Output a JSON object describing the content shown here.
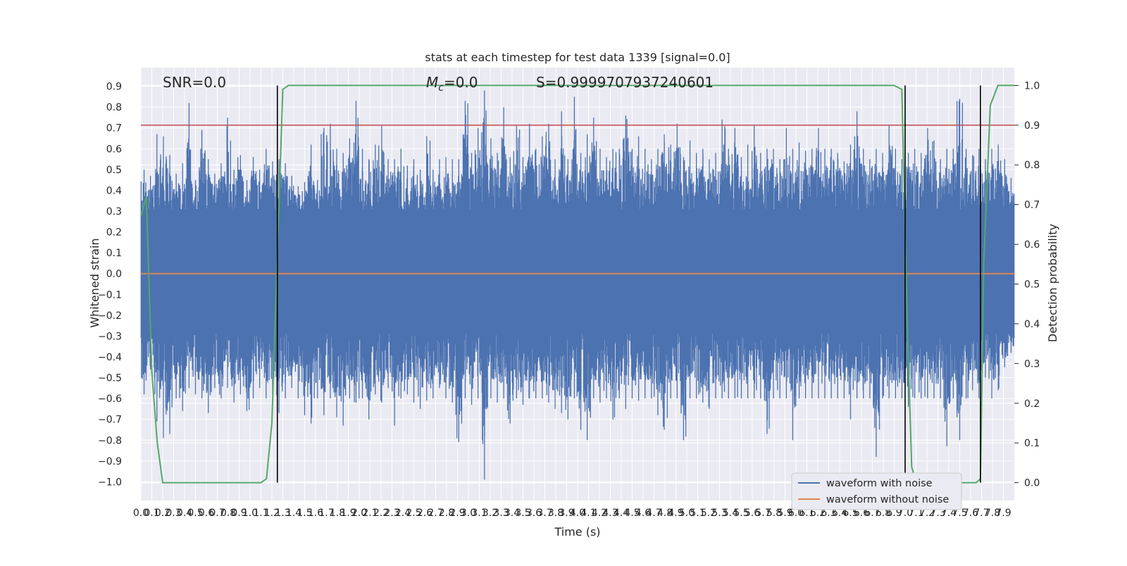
{
  "chart_data": {
    "type": "line",
    "title": "stats at each timestep for test data 1339 [signal=0.0]",
    "xlabel": "Time (s)",
    "ylabel": "Whitened strain",
    "y2label": "Detection probability",
    "xlim": [
      0.0,
      8.0
    ],
    "ylim": [
      -1.09,
      0.99
    ],
    "y2lim": [
      -0.045,
      1.045
    ],
    "x_tick_labels": [
      "0.0",
      "0.1",
      "0.2",
      "0.3",
      "0.4",
      "0.5",
      "0.6",
      "0.7",
      "0.8",
      "0.9",
      "1.0",
      "1.1",
      "1.2",
      "1.3",
      "1.4",
      "1.5",
      "1.6",
      "1.7",
      "1.8",
      "1.9",
      "2.0",
      "2.1",
      "2.2",
      "2.3",
      "2.4",
      "2.5",
      "2.6",
      "2.7",
      "2.8",
      "2.9",
      "3.0",
      "3.1",
      "3.2",
      "3.3",
      "3.4",
      "3.5",
      "3.6",
      "3.7",
      "3.8",
      "3.9",
      "4.0",
      "4.1",
      "4.2",
      "4.3",
      "4.4",
      "4.5",
      "4.6",
      "4.7",
      "4.8",
      "4.9",
      "5.0",
      "5.1",
      "5.2",
      "5.3",
      "5.4",
      "5.5",
      "5.6",
      "5.7",
      "5.8",
      "5.9",
      "6.0",
      "6.1",
      "6.2",
      "6.3",
      "6.4",
      "6.5",
      "6.6",
      "6.7",
      "6.8",
      "6.9",
      "7.0",
      "7.1",
      "7.2",
      "7.3",
      "7.4",
      "7.5",
      "7.6",
      "7.7",
      "7.8",
      "7.9"
    ],
    "y_tick_labels": [
      "0.9",
      "0.8",
      "0.7",
      "0.6",
      "0.5",
      "0.4",
      "0.3",
      "0.2",
      "0.1",
      "0.0",
      "−0.1",
      "−0.2",
      "−0.3",
      "−0.4",
      "−0.5",
      "−0.6",
      "−0.7",
      "−0.8",
      "−0.9",
      "−1.0"
    ],
    "y_ticks": [
      0.9,
      0.8,
      0.7,
      0.6,
      0.5,
      0.4,
      0.3,
      0.2,
      0.1,
      0.0,
      -0.1,
      -0.2,
      -0.3,
      -0.4,
      -0.5,
      -0.6,
      -0.7,
      -0.8,
      -0.9,
      -1.0
    ],
    "y2_tick_labels": [
      "1.0",
      "0.9",
      "0.8",
      "0.7",
      "0.6",
      "0.5",
      "0.4",
      "0.3",
      "0.2",
      "0.1",
      "0.0"
    ],
    "y2_ticks": [
      1.0,
      0.9,
      0.8,
      0.7,
      0.6,
      0.5,
      0.4,
      0.3,
      0.2,
      0.1,
      0.0
    ],
    "annotations": {
      "snr": "SNR=0.0",
      "mc_symbol": "M",
      "mc_sub": "c",
      "mc_value": "=0.0",
      "s": "S=0.9999707937240601"
    },
    "threshold": 0.9,
    "event_lines_x": [
      1.25,
      7.0,
      7.69
    ],
    "detection_probability": {
      "x": [
        0.0,
        0.05,
        0.1,
        0.15,
        0.2,
        0.25,
        0.3,
        0.4,
        0.6,
        0.8,
        1.0,
        1.1,
        1.15,
        1.2,
        1.25,
        1.3,
        1.35,
        1.4,
        1.6,
        2.0,
        3.0,
        4.0,
        5.0,
        6.0,
        6.9,
        6.97,
        7.02,
        7.06,
        7.1,
        7.2,
        7.4,
        7.6,
        7.65,
        7.69,
        7.72,
        7.78,
        7.85,
        7.95,
        8.0
      ],
      "y": [
        0.67,
        0.72,
        0.28,
        0.1,
        0.0,
        0.0,
        0.0,
        0.0,
        0.0,
        0.0,
        0.0,
        0.0,
        0.01,
        0.15,
        0.58,
        0.99,
        1.0,
        1.0,
        1.0,
        1.0,
        1.0,
        1.0,
        1.0,
        1.0,
        1.0,
        0.99,
        0.4,
        0.04,
        0.0,
        0.0,
        0.0,
        0.0,
        0.0,
        0.01,
        0.55,
        0.95,
        1.0,
        1.0,
        1.0
      ]
    },
    "series": [
      {
        "name": "waveform with noise",
        "color": "#4c72b0",
        "envelope_upper": [
          0.5,
          0.47,
          0.67,
          0.66,
          0.57,
          0.48,
          0.53,
          0.82,
          0.45,
          0.69,
          0.55,
          0.48,
          0.53,
          0.75,
          0.5,
          0.57,
          0.45,
          0.56,
          0.5,
          0.6,
          0.54,
          0.55,
          0.53,
          0.47,
          0.42,
          0.44,
          0.62,
          0.45,
          0.7,
          0.72,
          0.6,
          0.58,
          0.65,
          0.83,
          0.6,
          0.55,
          0.62,
          0.71,
          0.55,
          0.55,
          0.6,
          0.52,
          0.55,
          0.5,
          0.66,
          0.5,
          0.55,
          0.56,
          0.55,
          0.55,
          0.83,
          0.58,
          0.7,
          0.88,
          0.65,
          0.58,
          0.8,
          0.56,
          0.71,
          0.56,
          0.72,
          0.6,
          0.66,
          0.72,
          0.55,
          0.78,
          0.55,
          0.85,
          0.58,
          0.67,
          0.75,
          0.6,
          0.56,
          0.6,
          0.6,
          0.76,
          0.6,
          0.66,
          0.6,
          0.55,
          0.6,
          0.67,
          0.62,
          0.72,
          0.56,
          0.64,
          0.58,
          0.6,
          0.55,
          0.58,
          0.74,
          0.6,
          0.7,
          0.56,
          0.62,
          0.71,
          0.58,
          0.6,
          0.6,
          0.55,
          0.7,
          0.6,
          0.63,
          0.59,
          0.6,
          0.7,
          0.6,
          0.6,
          0.58,
          0.54,
          0.62,
          0.78,
          0.6,
          0.55,
          0.6,
          0.58,
          0.71,
          0.6,
          0.55,
          0.58,
          0.6,
          0.58,
          0.7,
          0.64,
          0.55,
          0.6,
          0.6,
          0.84,
          0.6,
          0.57,
          0.6,
          0.55,
          0.6,
          0.62,
          0.55,
          0.46
        ],
        "envelope_lower": [
          -0.58,
          -0.46,
          -0.71,
          -0.79,
          -0.77,
          -0.6,
          -0.66,
          -0.55,
          -0.58,
          -0.6,
          -0.67,
          -0.55,
          -0.6,
          -0.55,
          -0.62,
          -0.58,
          -0.66,
          -0.6,
          -0.55,
          -0.6,
          -0.58,
          -0.67,
          -0.6,
          -0.55,
          -0.6,
          -0.68,
          -0.72,
          -0.6,
          -0.68,
          -0.6,
          -0.69,
          -0.73,
          -0.6,
          -0.62,
          -0.6,
          -0.7,
          -0.58,
          -0.62,
          -0.55,
          -0.73,
          -0.6,
          -0.58,
          -0.62,
          -0.65,
          -0.61,
          -0.6,
          -0.55,
          -0.6,
          -0.62,
          -0.81,
          -0.6,
          -0.63,
          -0.6,
          -0.99,
          -0.6,
          -0.62,
          -0.6,
          -0.72,
          -0.6,
          -0.63,
          -0.6,
          -0.6,
          -0.6,
          -0.62,
          -0.65,
          -0.67,
          -0.7,
          -0.6,
          -0.75,
          -0.8,
          -0.6,
          -0.62,
          -0.6,
          -0.7,
          -0.6,
          -0.65,
          -0.6,
          -0.61,
          -0.6,
          -0.6,
          -0.68,
          -0.75,
          -0.6,
          -0.6,
          -0.8,
          -0.6,
          -0.6,
          -0.62,
          -0.65,
          -0.6,
          -0.6,
          -0.6,
          -0.6,
          -0.6,
          -0.6,
          -0.6,
          -0.6,
          -0.77,
          -0.6,
          -0.6,
          -0.6,
          -0.8,
          -0.6,
          -0.6,
          -0.6,
          -0.6,
          -0.6,
          -0.6,
          -0.6,
          -0.6,
          -0.7,
          -0.6,
          -0.6,
          -0.6,
          -0.88,
          -0.6,
          -0.6,
          -0.6,
          -0.6,
          -0.64,
          -0.6,
          -0.6,
          -0.6,
          -0.6,
          -0.6,
          -0.83,
          -0.6,
          -0.8,
          -0.6,
          -0.56,
          -0.6,
          -0.5,
          -0.6,
          -0.56,
          -0.45,
          -0.38
        ]
      },
      {
        "name": "waveform without noise",
        "color": "#dd8452",
        "values": "0.0 for all t"
      }
    ],
    "legend": {
      "position": "lower right",
      "entries": [
        "waveform with noise",
        "waveform without noise"
      ]
    },
    "colors": {
      "background": "#eaeaf2",
      "grid": "#ffffff",
      "probability": "#55a868",
      "threshold": "#c44e52",
      "event_line": "#000000"
    }
  }
}
